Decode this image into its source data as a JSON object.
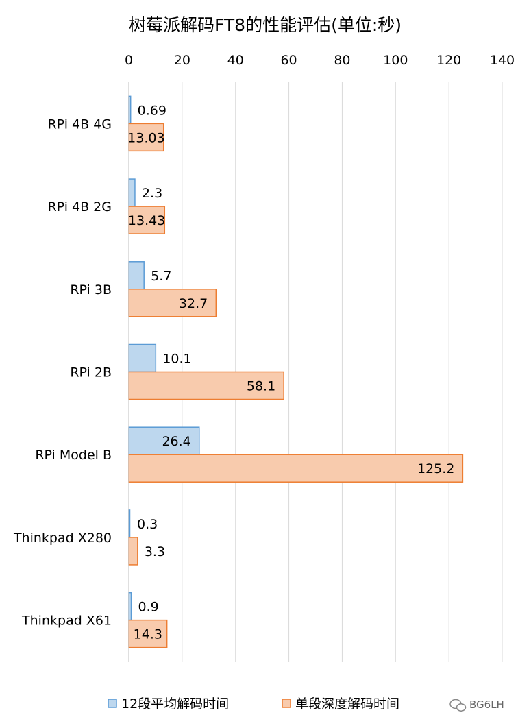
{
  "chart_data": {
    "type": "bar",
    "orientation": "horizontal",
    "title": "树莓派解码FT8的性能评估(单位:秒)",
    "categories": [
      "RPi 4B 4G",
      "RPi 4B 2G",
      "RPi 3B",
      "RPi 2B",
      "RPi Model B",
      "Thinkpad X280",
      "Thinkpad X61"
    ],
    "series": [
      {
        "name": "12段平均解码时间",
        "color": "#5b9bd5",
        "fill": "#bdd7ee",
        "values": [
          0.69,
          2.3,
          5.7,
          10.1,
          26.4,
          0.3,
          0.9
        ],
        "labels": [
          "0.69",
          "2.3",
          "5.7",
          "10.1",
          "26.4",
          "0.3",
          "0.9"
        ]
      },
      {
        "name": "单段深度解码时间",
        "color": "#ed7d31",
        "fill": "#f8cbad",
        "values": [
          13.03,
          13.43,
          32.7,
          58.1,
          125.2,
          3.3,
          14.3
        ],
        "labels": [
          "13.03",
          "13.43",
          "32.7",
          "58.1",
          "125.2",
          "3.3",
          "14.3"
        ]
      }
    ],
    "xlim": [
      0,
      140
    ],
    "xticks": [
      "0",
      "20",
      "40",
      "60",
      "80",
      "100",
      "120",
      "140"
    ],
    "x_axis_position": "top",
    "grid": true,
    "legend_position": "bottom"
  },
  "watermark": "BG6LH"
}
